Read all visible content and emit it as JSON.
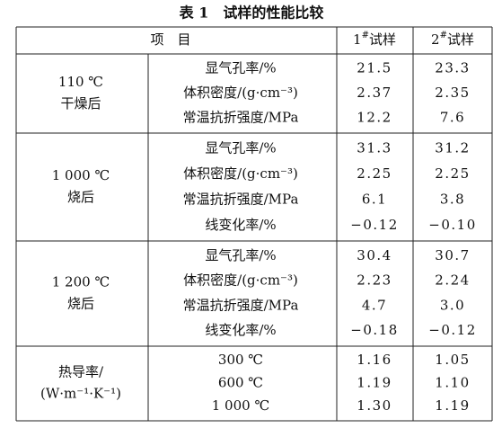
{
  "title": "表 1　试样的性能比较",
  "table": {
    "header": {
      "item": "项　目",
      "samples": [
        {
          "num": "1",
          "sup": "#",
          "text": "试样"
        },
        {
          "num": "2",
          "sup": "#",
          "text": "试样"
        }
      ]
    },
    "groups": [
      {
        "label": [
          "110 ℃",
          "干燥后"
        ],
        "rows": [
          {
            "name": "显气孔率/%",
            "values": [
              "21.5",
              "23.3"
            ]
          },
          {
            "name": "体积密度/(g·cm⁻³)",
            "values": [
              "2.37",
              "2.35"
            ]
          },
          {
            "name": "常温抗折强度/MPa",
            "values": [
              "12.2",
              "7.6"
            ]
          }
        ]
      },
      {
        "label": [
          "1 000 ℃",
          "烧后"
        ],
        "rows": [
          {
            "name": "显气孔率/%",
            "values": [
              "31.3",
              "31.2"
            ]
          },
          {
            "name": "体积密度/(g·cm⁻³)",
            "values": [
              "2.25",
              "2.25"
            ]
          },
          {
            "name": "常温抗折强度/MPa",
            "values": [
              "6.1",
              "3.8"
            ]
          },
          {
            "name": "线变化率/%",
            "values": [
              "−0.12",
              "−0.10"
            ]
          }
        ]
      },
      {
        "label": [
          "1 200 ℃",
          "烧后"
        ],
        "rows": [
          {
            "name": "显气孔率/%",
            "values": [
              "30.4",
              "30.7"
            ]
          },
          {
            "name": "体积密度/(g·cm⁻³)",
            "values": [
              "2.23",
              "2.24"
            ]
          },
          {
            "name": "常温抗折强度/MPa",
            "values": [
              "4.7",
              "3.0"
            ]
          },
          {
            "name": "线变化率/%",
            "values": [
              "−0.18",
              "−0.12"
            ]
          }
        ]
      },
      {
        "label": [
          "热导率/",
          "(W·m⁻¹·K⁻¹)"
        ],
        "rows": [
          {
            "name": "300 ℃",
            "values": [
              "1.16",
              "1.05"
            ]
          },
          {
            "name": "600 ℃",
            "values": [
              "1.19",
              "1.10"
            ]
          },
          {
            "name": "1 000 ℃",
            "values": [
              "1.30",
              "1.19"
            ]
          }
        ]
      }
    ]
  }
}
